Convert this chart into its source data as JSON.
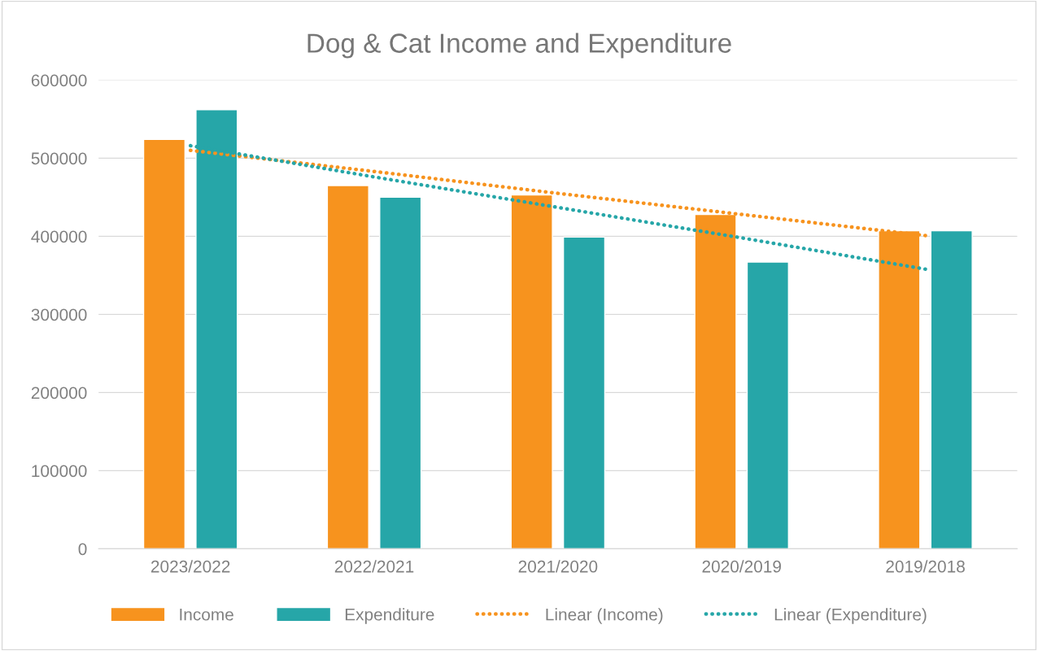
{
  "chart_data": {
    "type": "bar",
    "title": "Dog & Cat Income and Expenditure",
    "categories": [
      "2023/2022",
      "2022/2021",
      "2021/2020",
      "2020/2019",
      "2019/2018"
    ],
    "series": [
      {
        "name": "Income",
        "color": "#f7931e",
        "values": [
          524000,
          465000,
          453000,
          428000,
          407000
        ]
      },
      {
        "name": "Expenditure",
        "color": "#26a6a8",
        "values": [
          562000,
          450000,
          399000,
          367000,
          407000
        ]
      },
      {
        "name": "Linear (Income)",
        "type": "line",
        "line_style": "dotted",
        "color": "#f7931e",
        "values": [
          510000,
          483000,
          455000,
          428000,
          401000
        ]
      },
      {
        "name": "Linear (Expenditure)",
        "type": "line",
        "line_style": "dotted",
        "color": "#26a6a8",
        "values": [
          516000,
          476000,
          437000,
          398000,
          358000
        ]
      }
    ],
    "ylim": [
      0,
      600000
    ],
    "yticks": [
      0,
      100000,
      200000,
      300000,
      400000,
      500000,
      600000
    ],
    "grid": "y",
    "legend": "bottom"
  }
}
